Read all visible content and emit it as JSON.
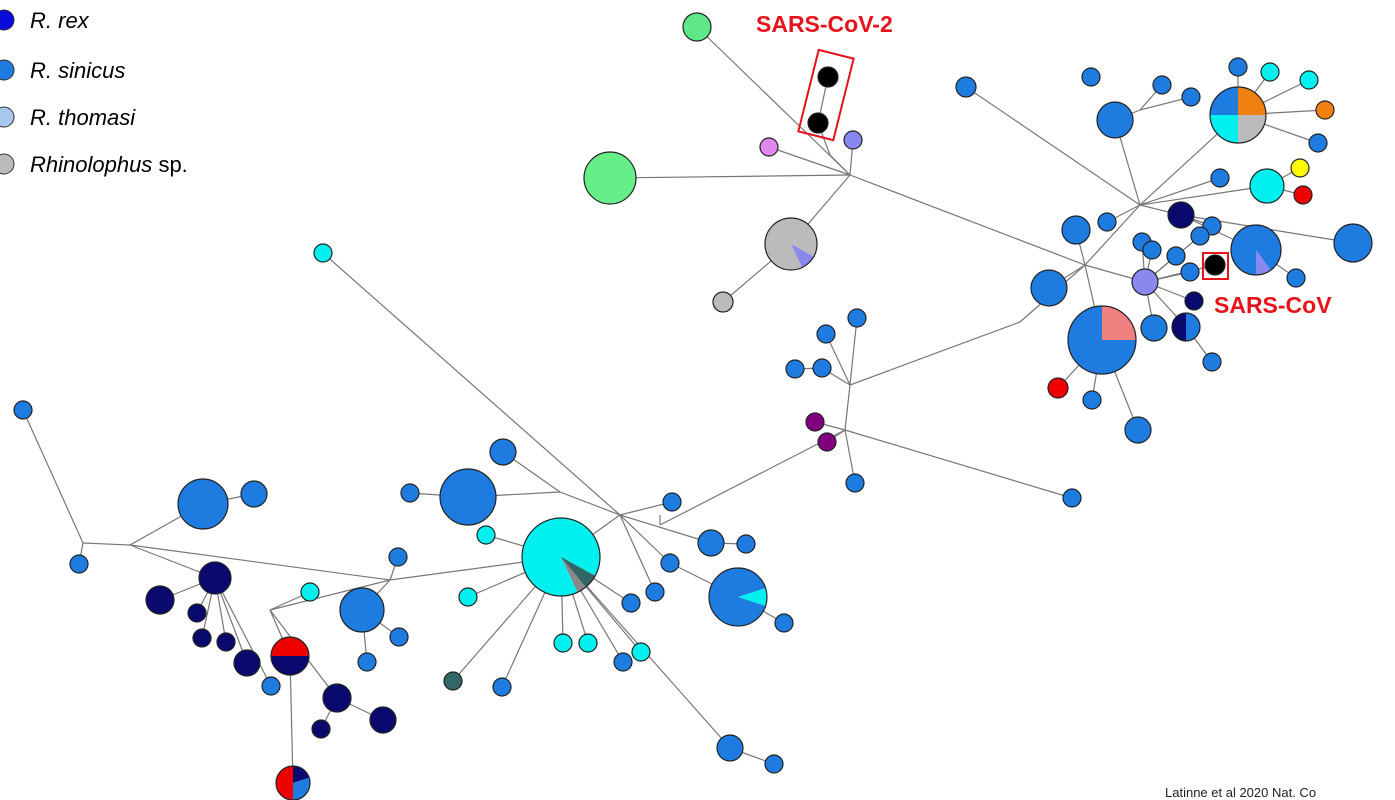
{
  "legend": {
    "items": [
      {
        "label": "R. rex"
      },
      {
        "label": "R. sinicus"
      },
      {
        "label": "R. thomasi"
      },
      {
        "genus": "Rhinolophus",
        "suffix": "sp."
      }
    ]
  },
  "annotations": {
    "sars_cov_2": "SARS-CoV-2",
    "sars_cov": "SARS-CoV"
  },
  "citation": "Latinne et al 2020 Nat. Co"
}
